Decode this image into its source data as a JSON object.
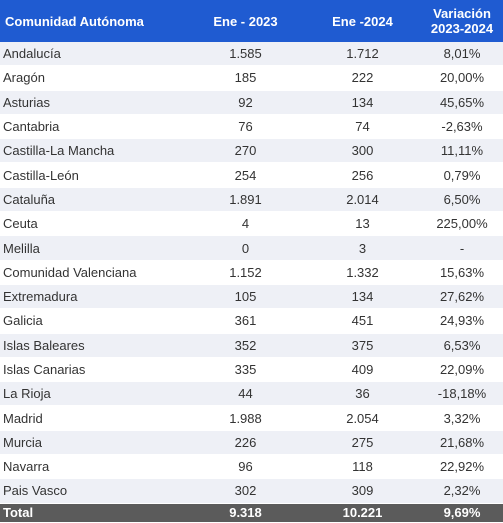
{
  "table": {
    "header": [
      "Comunidad Autónoma",
      "Ene - 2023",
      "Ene -2024",
      "Variación 2023-2024"
    ],
    "rows": [
      [
        "Andalucía",
        "1.585",
        "1.712",
        "8,01%"
      ],
      [
        "Aragón",
        "185",
        "222",
        "20,00%"
      ],
      [
        "Asturias",
        "92",
        "134",
        "45,65%"
      ],
      [
        "Cantabria",
        "76",
        "74",
        "-2,63%"
      ],
      [
        "Castilla-La Mancha",
        "270",
        "300",
        "11,11%"
      ],
      [
        "Castilla-León",
        "254",
        "256",
        "0,79%"
      ],
      [
        "Cataluña",
        "1.891",
        "2.014",
        "6,50%"
      ],
      [
        "Ceuta",
        "4",
        "13",
        "225,00%"
      ],
      [
        "Melilla",
        "0",
        "3",
        "-"
      ],
      [
        "Comunidad Valenciana",
        "1.152",
        "1.332",
        "15,63%"
      ],
      [
        "Extremadura",
        "105",
        "134",
        "27,62%"
      ],
      [
        "Galicia",
        "361",
        "451",
        "24,93%"
      ],
      [
        "Islas Baleares",
        "352",
        "375",
        "6,53%"
      ],
      [
        "Islas Canarias",
        "335",
        "409",
        "22,09%"
      ],
      [
        "La Rioja",
        "44",
        "36",
        "-18,18%"
      ],
      [
        "Madrid",
        "1.988",
        "2.054",
        "3,32%"
      ],
      [
        "Murcia",
        "226",
        "275",
        "21,68%"
      ],
      [
        "Navarra",
        "96",
        "118",
        "22,92%"
      ],
      [
        "Pais Vasco",
        "302",
        "309",
        "2,32%"
      ]
    ],
    "total": [
      "Total",
      "9.318",
      "10.221",
      "9,69%"
    ]
  }
}
